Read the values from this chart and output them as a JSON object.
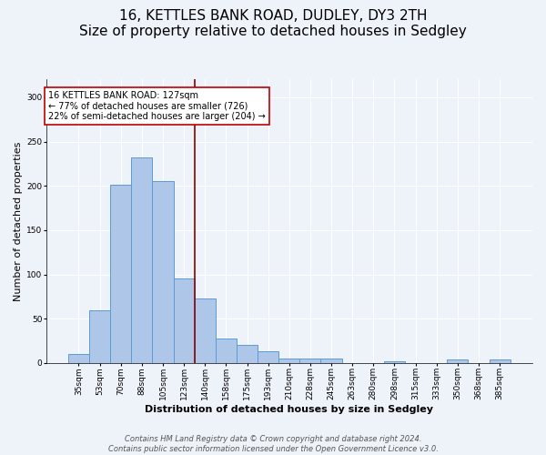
{
  "title": "16, KETTLES BANK ROAD, DUDLEY, DY3 2TH",
  "subtitle": "Size of property relative to detached houses in Sedgley",
  "xlabel": "Distribution of detached houses by size in Sedgley",
  "ylabel": "Number of detached properties",
  "categories": [
    "35sqm",
    "53sqm",
    "70sqm",
    "88sqm",
    "105sqm",
    "123sqm",
    "140sqm",
    "158sqm",
    "175sqm",
    "193sqm",
    "210sqm",
    "228sqm",
    "245sqm",
    "263sqm",
    "280sqm",
    "298sqm",
    "315sqm",
    "333sqm",
    "350sqm",
    "368sqm",
    "385sqm"
  ],
  "values": [
    10,
    59,
    201,
    232,
    205,
    95,
    73,
    28,
    20,
    13,
    5,
    5,
    5,
    0,
    0,
    2,
    0,
    0,
    4,
    0,
    4
  ],
  "bar_color": "#aec6e8",
  "bar_edge_color": "#5b9bd5",
  "vline_x": 5.5,
  "vline_color": "#8b0000",
  "annotation_text": "16 KETTLES BANK ROAD: 127sqm\n← 77% of detached houses are smaller (726)\n22% of semi-detached houses are larger (204) →",
  "annotation_box_color": "#ffffff",
  "annotation_box_edge": "#c00000",
  "ylim": [
    0,
    320
  ],
  "yticks": [
    0,
    50,
    100,
    150,
    200,
    250,
    300
  ],
  "footer_line1": "Contains HM Land Registry data © Crown copyright and database right 2024.",
  "footer_line2": "Contains public sector information licensed under the Open Government Licence v3.0.",
  "bg_color": "#eef2f9",
  "title_fontsize": 11,
  "subtitle_fontsize": 9,
  "xlabel_fontsize": 8,
  "ylabel_fontsize": 8,
  "tick_fontsize": 6.5,
  "annotation_fontsize": 7,
  "footer_fontsize": 6
}
